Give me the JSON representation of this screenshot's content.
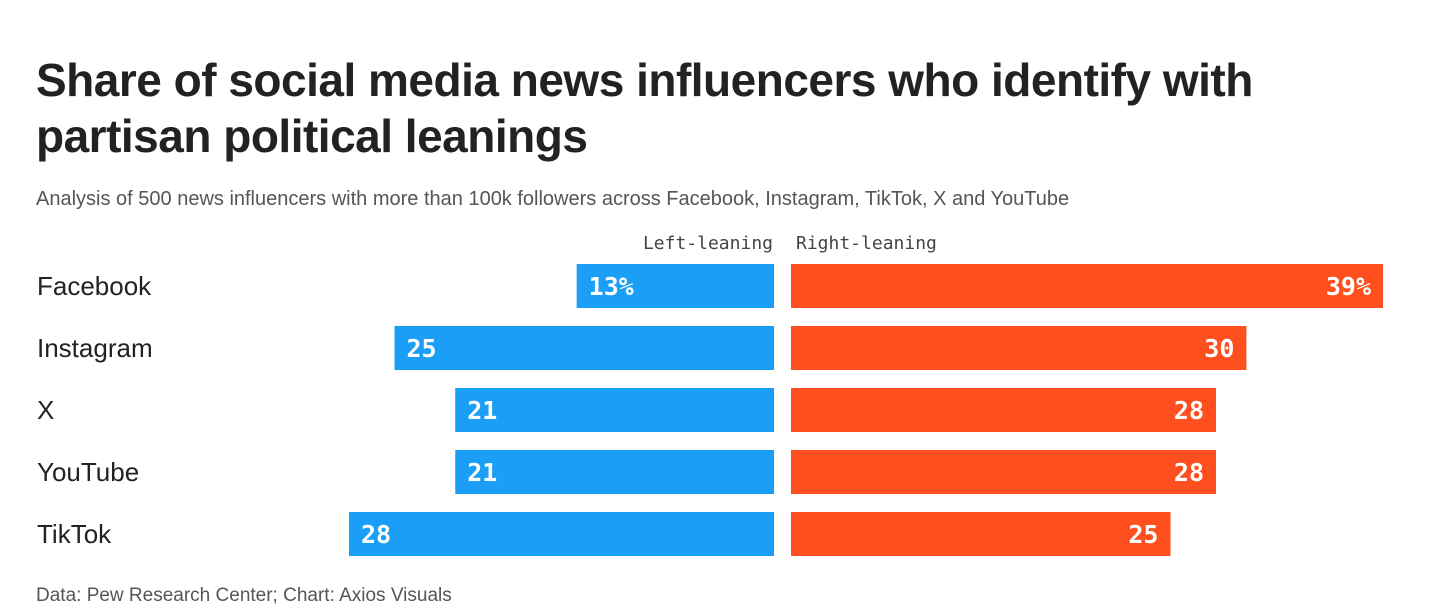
{
  "title": "Share of social media news influencers who identify with partisan political leanings",
  "subtitle": "Analysis of 500 news influencers with more than 100k followers across Facebook, Instagram, TikTok, X and YouTube",
  "source": "Data: Pew Research Center; Chart: Axios Visuals",
  "chart_data": {
    "type": "bar",
    "orientation": "horizontal-diverging",
    "categories": [
      "Facebook",
      "Instagram",
      "X",
      "YouTube",
      "TikTok"
    ],
    "series": [
      {
        "name": "Left-leaning",
        "values": [
          13,
          25,
          21,
          21,
          28
        ],
        "labels": [
          "13%",
          "25",
          "21",
          "21",
          "28"
        ],
        "color": "#1b9ef5"
      },
      {
        "name": "Right-leaning",
        "values": [
          39,
          30,
          28,
          28,
          25
        ],
        "labels": [
          "39%",
          "30",
          "28",
          "28",
          "25"
        ],
        "color": "#ff4f1f"
      }
    ],
    "unit": "%",
    "xlim": [
      0,
      39
    ],
    "grid": false,
    "legend": "top-center"
  }
}
